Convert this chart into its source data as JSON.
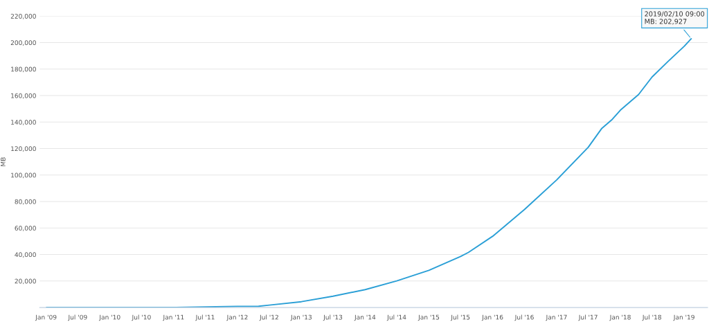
{
  "chart_data": {
    "type": "line",
    "ylabel": "MB",
    "x": [
      "2009-01-03",
      "2010-01-01",
      "2011-01-01",
      "2011-07-01",
      "2012-01-01",
      "2012-05-01",
      "2012-07-01",
      "2013-01-01",
      "2013-07-01",
      "2014-01-01",
      "2014-07-01",
      "2015-01-01",
      "2015-07-01",
      "2015-08-15",
      "2016-01-01",
      "2016-07-01",
      "2017-01-01",
      "2017-07-01",
      "2017-09-15",
      "2017-11-15",
      "2018-01-01",
      "2018-04-15",
      "2018-07-01",
      "2018-10-01",
      "2019-01-01",
      "2019-02-10T09:00"
    ],
    "series": [
      {
        "color": "#2a9fd6",
        "values": [
          0,
          0,
          0,
          400,
          900,
          1000,
          1800,
          4400,
          8500,
          13500,
          20100,
          28100,
          38500,
          41600,
          53800,
          74000,
          96300,
          121000,
          135000,
          142000,
          149000,
          160800,
          174000,
          185800,
          197200,
          202927
        ]
      }
    ],
    "xlim": [
      "2008-11-25",
      "2019-05-15"
    ],
    "xticks": [
      {
        "value": "2009-01-01",
        "label": "Jan '09"
      },
      {
        "value": "2009-07-01",
        "label": "Jul '09"
      },
      {
        "value": "2010-01-01",
        "label": "Jan '10"
      },
      {
        "value": "2010-07-01",
        "label": "Jul '10"
      },
      {
        "value": "2011-01-01",
        "label": "Jan '11"
      },
      {
        "value": "2011-07-01",
        "label": "Jul '11"
      },
      {
        "value": "2012-01-01",
        "label": "Jan '12"
      },
      {
        "value": "2012-07-01",
        "label": "Jul '12"
      },
      {
        "value": "2013-01-01",
        "label": "Jan '13"
      },
      {
        "value": "2013-07-01",
        "label": "Jul '13"
      },
      {
        "value": "2014-01-01",
        "label": "Jan '14"
      },
      {
        "value": "2014-07-01",
        "label": "Jul '14"
      },
      {
        "value": "2015-01-01",
        "label": "Jan '15"
      },
      {
        "value": "2015-07-01",
        "label": "Jul '15"
      },
      {
        "value": "2016-01-01",
        "label": "Jan '16"
      },
      {
        "value": "2016-07-01",
        "label": "Jul '16"
      },
      {
        "value": "2017-01-01",
        "label": "Jan '17"
      },
      {
        "value": "2017-07-01",
        "label": "Jul '17"
      },
      {
        "value": "2018-01-01",
        "label": "Jan '18"
      },
      {
        "value": "2018-07-01",
        "label": "Jul '18"
      },
      {
        "value": "2019-01-01",
        "label": "Jan '19"
      }
    ],
    "ylim": [
      0,
      220000
    ],
    "yticks": [
      {
        "value": 20000,
        "label": "20,000"
      },
      {
        "value": 40000,
        "label": "40,000"
      },
      {
        "value": 60000,
        "label": "60,000"
      },
      {
        "value": 80000,
        "label": "80,000"
      },
      {
        "value": 100000,
        "label": "100,000"
      },
      {
        "value": 120000,
        "label": "120,000"
      },
      {
        "value": 140000,
        "label": "140,000"
      },
      {
        "value": 160000,
        "label": "160,000"
      },
      {
        "value": 180000,
        "label": "180,000"
      },
      {
        "value": 200000,
        "label": "200,000"
      },
      {
        "value": 220000,
        "label": "220,000"
      }
    ],
    "grid": "y",
    "marker": "none",
    "line_style": "solid",
    "legend": false,
    "annotations": [
      {
        "text": "2019/02/10 09:00\nMB: 202,927",
        "x": "2019-02-10T09:00",
        "y": 202927
      }
    ]
  }
}
